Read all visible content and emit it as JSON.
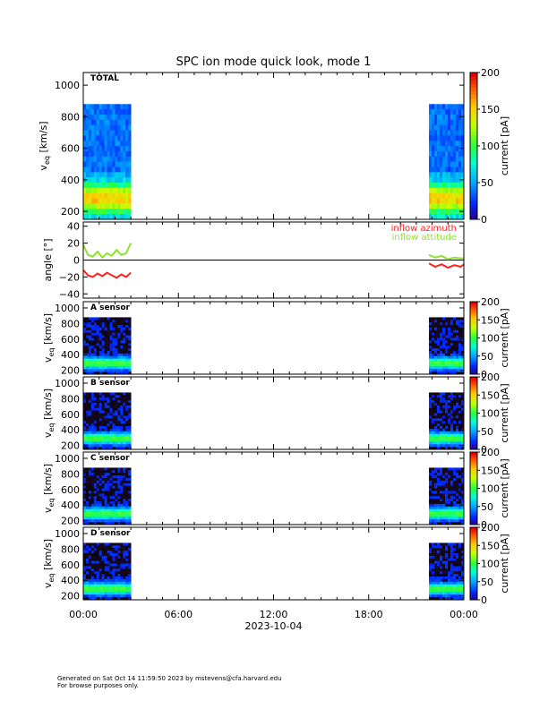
{
  "footer": {
    "generated": "Generated on Sat Oct 14 11:59:50 2023 by mstevens@cfa.harvard.edu",
    "note": "For browse purposes only."
  },
  "colors": {
    "azimuth": "#ff2020",
    "attitude": "#90e030"
  },
  "chart_data": {
    "type": "heatmap",
    "title": "SPC ion mode quick look, mode 1",
    "xlabel": "2023-10-04",
    "x_ticks": [
      "00:00",
      "06:00",
      "12:00",
      "18:00",
      "00:00"
    ],
    "x_range_hours": [
      0,
      24
    ],
    "data_intervals_hours": [
      [
        0.0,
        3.0
      ],
      [
        21.8,
        24.0
      ]
    ],
    "panels": [
      {
        "name": "TOTAL",
        "ylabel": "v",
        "ylabel_sub": "eq",
        "ylabel_unit": " [km/s]",
        "ylim": [
          150,
          1080
        ],
        "y_ticks": [
          "200",
          "400",
          "600",
          "800",
          "1000"
        ],
        "y_tick_values": [
          200,
          400,
          600,
          800,
          1000
        ],
        "data_top": 880,
        "colorbar": {
          "label": "current [pA]",
          "ticks": [
            "0",
            "50",
            "100",
            "150",
            "200"
          ],
          "range": [
            0,
            200
          ]
        }
      },
      {
        "name": "angle",
        "ylabel": "angle [°]",
        "ylim": [
          -45,
          45
        ],
        "y_ticks": [
          "40",
          "20",
          "0",
          "−20",
          "−40"
        ],
        "y_tick_values": [
          40,
          20,
          0,
          -20,
          -40
        ],
        "series": [
          {
            "name": "inflow azimuth",
            "color": "#ff2020",
            "x": [
              0.0,
              0.3,
              0.6,
              0.9,
              1.2,
              1.5,
              1.8,
              2.1,
              2.4,
              2.7,
              3.0,
              21.8,
              22.2,
              22.6,
              23.0,
              23.4,
              23.8,
              24.0
            ],
            "y": [
              -12,
              -18,
              -20,
              -16,
              -19,
              -15,
              -18,
              -21,
              -17,
              -20,
              -15,
              -4,
              -8,
              -5,
              -9,
              -6,
              -8,
              -5
            ]
          },
          {
            "name": "inflow attitude",
            "color": "#90e030",
            "x": [
              0.0,
              0.3,
              0.6,
              0.9,
              1.2,
              1.5,
              1.8,
              2.1,
              2.4,
              2.7,
              3.0,
              21.8,
              22.2,
              22.6,
              23.0,
              23.4,
              23.8,
              24.0
            ],
            "y": [
              18,
              6,
              4,
              10,
              3,
              8,
              5,
              12,
              6,
              8,
              20,
              6,
              3,
              5,
              1,
              3,
              2,
              2
            ]
          }
        ]
      },
      {
        "name": "A sensor",
        "ylabel": "v",
        "ylabel_sub": "eq",
        "ylabel_unit": " [km/s]",
        "ylim": [
          150,
          1080
        ],
        "y_ticks": [
          "200",
          "400",
          "600",
          "800",
          "1000"
        ],
        "y_tick_values": [
          200,
          400,
          600,
          800,
          1000
        ],
        "data_top": 880,
        "colorbar": {
          "label": "current [pA]",
          "ticks": [
            "0",
            "50",
            "100",
            "150",
            "200"
          ],
          "range": [
            0,
            200
          ]
        }
      },
      {
        "name": "B sensor",
        "ylabel": "v",
        "ylabel_sub": "eq",
        "ylabel_unit": " [km/s]",
        "ylim": [
          150,
          1080
        ],
        "y_ticks": [
          "200",
          "400",
          "600",
          "800",
          "1000"
        ],
        "y_tick_values": [
          200,
          400,
          600,
          800,
          1000
        ],
        "data_top": 880,
        "colorbar": {
          "label": "current [pA]",
          "ticks": [
            "0",
            "50",
            "100",
            "150",
            "200"
          ],
          "range": [
            0,
            200
          ]
        }
      },
      {
        "name": "C sensor",
        "ylabel": "v",
        "ylabel_sub": "eq",
        "ylabel_unit": " [km/s]",
        "ylim": [
          150,
          1080
        ],
        "y_ticks": [
          "200",
          "400",
          "600",
          "800",
          "1000"
        ],
        "y_tick_values": [
          200,
          400,
          600,
          800,
          1000
        ],
        "data_top": 880,
        "colorbar": {
          "label": "current [pA]",
          "ticks": [
            "0",
            "50",
            "100",
            "150",
            "200"
          ],
          "range": [
            0,
            200
          ]
        }
      },
      {
        "name": "D sensor",
        "ylabel": "v",
        "ylabel_sub": "eq",
        "ylabel_unit": " [km/s]",
        "ylim": [
          150,
          1080
        ],
        "y_ticks": [
          "200",
          "400",
          "600",
          "800",
          "1000"
        ],
        "y_tick_values": [
          200,
          400,
          600,
          800,
          1000
        ],
        "data_top": 880,
        "colorbar": {
          "label": "current [pA]",
          "ticks": [
            "0",
            "50",
            "100",
            "150",
            "200"
          ],
          "range": [
            0,
            200
          ]
        }
      }
    ]
  }
}
